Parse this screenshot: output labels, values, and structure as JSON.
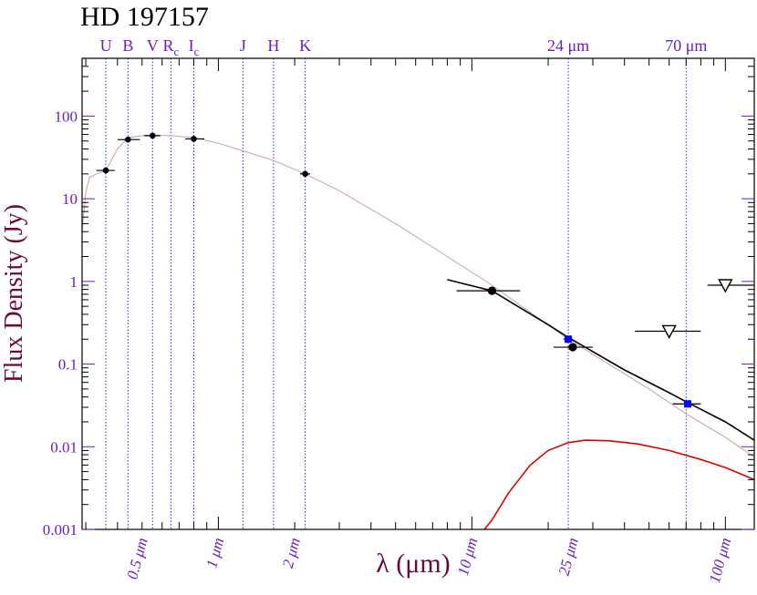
{
  "chart_data": {
    "type": "scatter",
    "title": "HD 197157",
    "xlabel": "λ (μm)",
    "ylabel": "Flux Density (Jy)",
    "x_scale": "log",
    "y_scale": "log",
    "xlim": [
      0.29,
      130
    ],
    "ylim": [
      0.001,
      500
    ],
    "y_ticks": [
      {
        "value": 100,
        "label": "100"
      },
      {
        "value": 10,
        "label": "10"
      },
      {
        "value": 1,
        "label": "1"
      },
      {
        "value": 0.1,
        "label": "0.1"
      },
      {
        "value": 0.01,
        "label": "0.01"
      },
      {
        "value": 0.001,
        "label": "0.001"
      }
    ],
    "x_tick_labels": [
      {
        "value": 0.5,
        "label": "0.5 μm"
      },
      {
        "value": 1,
        "label": "1 μm"
      },
      {
        "value": 2,
        "label": "2 μm"
      },
      {
        "value": 10,
        "label": "10 μm"
      },
      {
        "value": 25,
        "label": "25 μm"
      },
      {
        "value": 100,
        "label": "100 μm"
      }
    ],
    "band_lines": [
      {
        "label": "U",
        "sub": "",
        "x": 0.36
      },
      {
        "label": "B",
        "sub": "",
        "x": 0.44
      },
      {
        "label": "V",
        "sub": "",
        "x": 0.55
      },
      {
        "label": "R",
        "sub": "c",
        "x": 0.65
      },
      {
        "label": "I",
        "sub": "c",
        "x": 0.8
      },
      {
        "label": "J",
        "sub": "",
        "x": 1.25
      },
      {
        "label": "H",
        "sub": "",
        "x": 1.65
      },
      {
        "label": "K",
        "sub": "",
        "x": 2.2
      },
      {
        "label": "24 μm",
        "sub": "",
        "x": 24
      },
      {
        "label": "70 μm",
        "sub": "",
        "x": 70
      }
    ],
    "series": [
      {
        "kind": "photometry",
        "color": "#000000",
        "points": [
          {
            "x": 0.36,
            "y": 22,
            "xerr": [
              0.33,
              0.39
            ]
          },
          {
            "x": 0.44,
            "y": 52,
            "xerr": [
              0.4,
              0.49
            ]
          },
          {
            "x": 0.55,
            "y": 58,
            "xerr": [
              0.51,
              0.59
            ]
          },
          {
            "x": 0.8,
            "y": 53,
            "xerr": [
              0.74,
              0.88
            ]
          },
          {
            "x": 2.2,
            "y": 20,
            "xerr": [
              2.1,
              2.3
            ]
          }
        ]
      },
      {
        "kind": "iras",
        "color": "#000000",
        "points": [
          {
            "x": 12,
            "y": 0.77,
            "xerr": [
              8.7,
              15.5
            ]
          },
          {
            "x": 25,
            "y": 0.16,
            "xerr": [
              21,
              30
            ]
          }
        ]
      },
      {
        "kind": "mips",
        "color": "#0000ff",
        "points": [
          {
            "x": 24,
            "y": 0.2,
            "xerr": [
              23,
              25
            ]
          },
          {
            "x": 71,
            "y": 0.033,
            "xerr": [
              62,
              80
            ]
          }
        ]
      },
      {
        "kind": "upper_limit",
        "color": "#000000",
        "points": [
          {
            "x": 60,
            "y": 0.25,
            "xerr": [
              44,
              80
            ]
          },
          {
            "x": 100,
            "y": 0.9,
            "xerr": [
              85,
              130
            ]
          }
        ]
      }
    ],
    "model_photosphere": {
      "color": "#c9a0a8",
      "x": [
        0.29,
        0.3,
        0.31,
        0.33,
        0.36,
        0.4,
        0.44,
        0.5,
        0.55,
        0.65,
        0.8,
        1.0,
        1.25,
        1.65,
        2.2,
        3.0,
        5.0,
        8.0,
        12,
        24,
        50,
        70,
        100,
        130
      ],
      "y": [
        4.0,
        12,
        18,
        20,
        22,
        40,
        55,
        58,
        59,
        58,
        55,
        47,
        38,
        29,
        20,
        12.5,
        5.0,
        2.0,
        0.9,
        0.2,
        0.05,
        0.025,
        0.013,
        0.0075
      ]
    },
    "total_model": {
      "color": "#000000",
      "x": [
        8.0,
        12,
        20,
        24,
        40,
        60,
        70,
        100,
        130
      ],
      "y": [
        1.05,
        0.77,
        0.3,
        0.21,
        0.085,
        0.045,
        0.035,
        0.02,
        0.012
      ]
    },
    "excess_model": {
      "color": "#e00000",
      "x": [
        11.2,
        12,
        14,
        17,
        20,
        24,
        28,
        35,
        45,
        60,
        80,
        100,
        130
      ],
      "y": [
        0.001,
        0.0013,
        0.0028,
        0.006,
        0.009,
        0.0112,
        0.012,
        0.0118,
        0.0108,
        0.009,
        0.007,
        0.0056,
        0.004
      ]
    },
    "colors": {
      "axis_text": "#6a1cc8",
      "band_line": "#3a2ad0",
      "ylabel": "#6a0a3a",
      "frame": "#000000"
    }
  }
}
